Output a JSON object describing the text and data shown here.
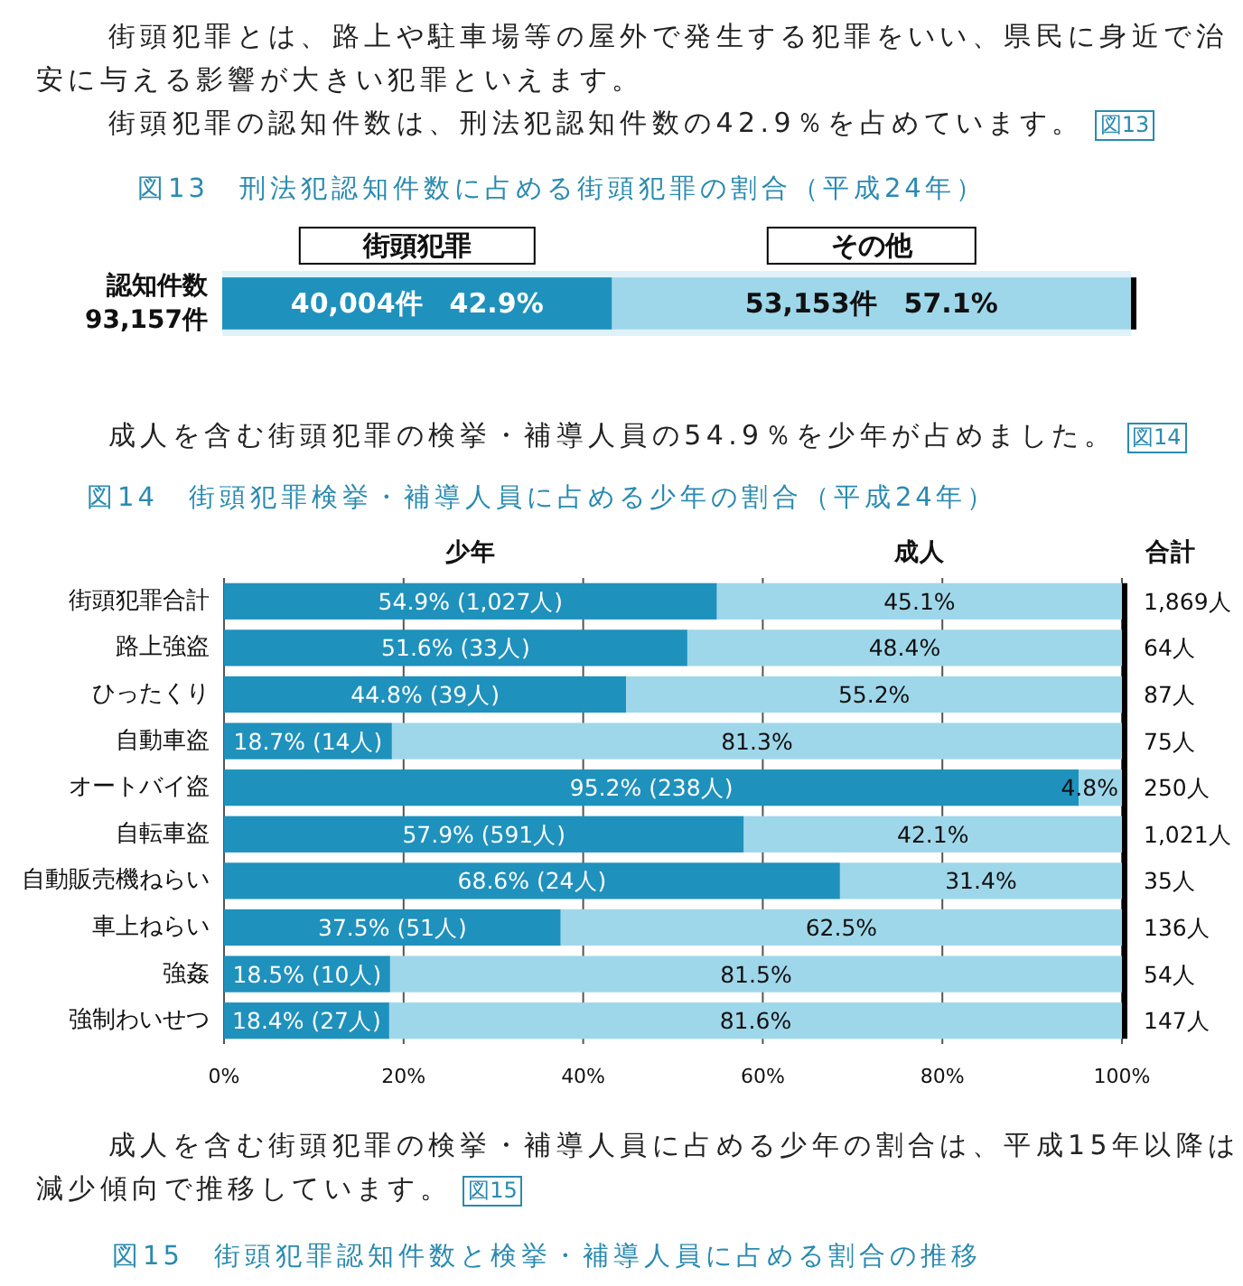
{
  "chart_data": [
    {
      "type": "bar",
      "orientation": "horizontal",
      "stacked": true,
      "title": "図13　刑法犯認知件数に占める街頭犯罪の割合（平成24年）",
      "annotations": [
        "街頭犯罪とは、路上や駐車場等の屋外で発生する犯罪をいい、県民に身近で治安に与える影響が大きい犯罪といえます。",
        "街頭犯罪の認知件数は、刑法犯認知件数の42.9％を占めています。",
        "図13"
      ],
      "categories": [
        "認知件数\n93,157件"
      ],
      "series": [
        {
          "name": "街頭犯罪",
          "color": "#1f91bd",
          "values": [
            42.9
          ],
          "value_labels": [
            "40,004件　42.9%"
          ]
        },
        {
          "name": "その他",
          "color": "#9fd7ea",
          "values": [
            57.1
          ],
          "value_labels": [
            "53,153件　57.1%"
          ]
        }
      ],
      "xlim": [
        0,
        100
      ],
      "legend": "top"
    },
    {
      "type": "bar",
      "orientation": "horizontal",
      "stacked": true,
      "title": "図14　街頭犯罪検挙・補導人員に占める少年の割合（平成24年）",
      "annotations": [
        "成人を含む街頭犯罪の検挙・補導人員の54.9％を少年が占めました。",
        "図14",
        "合計",
        "成人を含む街頭犯罪の検挙・補導人員に占める少年の割合は、平成15年以降は減少傾向で推移しています。",
        "図15",
        "図15　街頭犯罪認知件数と検挙・補導人員に占める割合の推移",
        "1,869人",
        "64人",
        "87人",
        "75人",
        "250人",
        "1,021人",
        "35人",
        "136人",
        "54人",
        "147人"
      ],
      "categories": [
        "街頭犯罪合計",
        "路上強盗",
        "ひったくり",
        "自動車盗",
        "オートバイ盗",
        "自転車盗",
        "自動販売機ねらい",
        "車上ねらい",
        "強姦",
        "強制わいせつ"
      ],
      "series": [
        {
          "name": "少年",
          "color": "#1f91bd",
          "values": [
            54.9,
            51.6,
            44.8,
            18.7,
            95.2,
            57.9,
            68.6,
            37.5,
            18.5,
            18.4
          ],
          "value_labels": [
            "54.9% (1,027人)",
            "51.6% (33人)",
            "44.8% (39人)",
            "18.7% (14人)",
            "95.2% (238人)",
            "57.9% (591人)",
            "68.6% (24人)",
            "37.5% (51人)",
            "18.5% (10人)",
            "18.4% (27人)"
          ]
        },
        {
          "name": "成人",
          "color": "#9fd7ea",
          "values": [
            45.1,
            48.4,
            55.2,
            81.3,
            4.8,
            42.1,
            31.4,
            62.5,
            81.5,
            81.6
          ],
          "value_labels": [
            "45.1%",
            "48.4%",
            "55.2%",
            "81.3%",
            "4.8%",
            "42.1%",
            "31.4%",
            "62.5%",
            "81.5%",
            "81.6%"
          ]
        }
      ],
      "xlim": [
        0,
        100
      ],
      "xticks": [
        {
          "value": 0,
          "label": "0%"
        },
        {
          "value": 20,
          "label": "20%"
        },
        {
          "value": 40,
          "label": "40%"
        },
        {
          "value": 60,
          "label": "60%"
        },
        {
          "value": 80,
          "label": "80%"
        },
        {
          "value": 100,
          "label": "100%"
        }
      ],
      "grid": "x",
      "legend": "top"
    }
  ]
}
